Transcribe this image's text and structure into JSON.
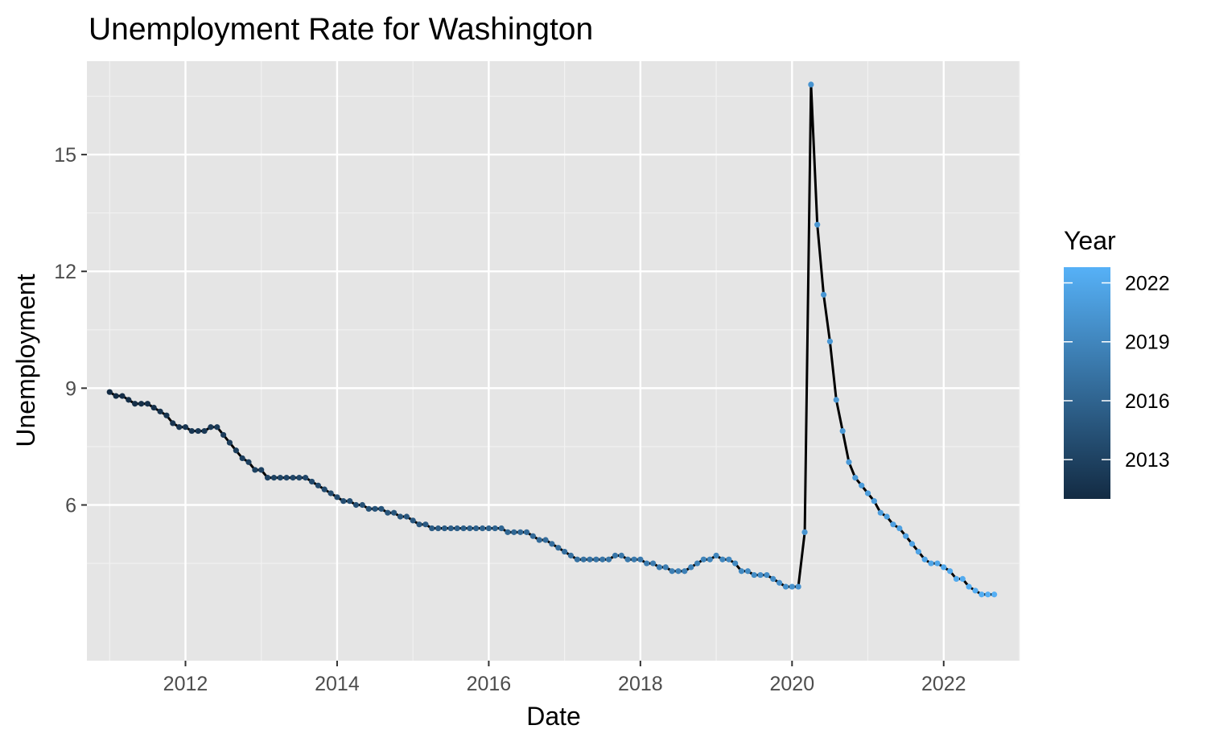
{
  "chart_data": {
    "type": "line",
    "title": "Unemployment Rate for Washington",
    "xlabel": "Date",
    "ylabel": "Unemployment",
    "x_ticks": [
      "2012",
      "2014",
      "2016",
      "2018",
      "2020",
      "2022"
    ],
    "y_ticks": [
      "6",
      "9",
      "12",
      "15"
    ],
    "xlim": [
      2010.7,
      2023.0
    ],
    "ylim": [
      2.0,
      17.4
    ],
    "grid": true,
    "legend": {
      "title": "Year",
      "labels": [
        "2022",
        "2019",
        "2016",
        "2013"
      ],
      "color_low": "#132B43",
      "color_high": "#56B1F7",
      "range": [
        2011,
        2022.8
      ],
      "placement": "right"
    },
    "line_color": "#000000",
    "panel_background": "#E5E5E5",
    "x": [
      2011.0,
      2011.083,
      2011.167,
      2011.25,
      2011.333,
      2011.417,
      2011.5,
      2011.583,
      2011.667,
      2011.75,
      2011.833,
      2011.917,
      2012.0,
      2012.083,
      2012.167,
      2012.25,
      2012.333,
      2012.417,
      2012.5,
      2012.583,
      2012.667,
      2012.75,
      2012.833,
      2012.917,
      2013.0,
      2013.083,
      2013.167,
      2013.25,
      2013.333,
      2013.417,
      2013.5,
      2013.583,
      2013.667,
      2013.75,
      2013.833,
      2013.917,
      2014.0,
      2014.083,
      2014.167,
      2014.25,
      2014.333,
      2014.417,
      2014.5,
      2014.583,
      2014.667,
      2014.75,
      2014.833,
      2014.917,
      2015.0,
      2015.083,
      2015.167,
      2015.25,
      2015.333,
      2015.417,
      2015.5,
      2015.583,
      2015.667,
      2015.75,
      2015.833,
      2015.917,
      2016.0,
      2016.083,
      2016.167,
      2016.25,
      2016.333,
      2016.417,
      2016.5,
      2016.583,
      2016.667,
      2016.75,
      2016.833,
      2016.917,
      2017.0,
      2017.083,
      2017.167,
      2017.25,
      2017.333,
      2017.417,
      2017.5,
      2017.583,
      2017.667,
      2017.75,
      2017.833,
      2017.917,
      2018.0,
      2018.083,
      2018.167,
      2018.25,
      2018.333,
      2018.417,
      2018.5,
      2018.583,
      2018.667,
      2018.75,
      2018.833,
      2018.917,
      2019.0,
      2019.083,
      2019.167,
      2019.25,
      2019.333,
      2019.417,
      2019.5,
      2019.583,
      2019.667,
      2019.75,
      2019.833,
      2019.917,
      2020.0,
      2020.083,
      2020.167,
      2020.25,
      2020.333,
      2020.417,
      2020.5,
      2020.583,
      2020.667,
      2020.75,
      2020.833,
      2020.917,
      2021.0,
      2021.083,
      2021.167,
      2021.25,
      2021.333,
      2021.417,
      2021.5,
      2021.583,
      2021.667,
      2021.75,
      2021.833,
      2021.917,
      2022.0,
      2022.083,
      2022.167,
      2022.25,
      2022.333,
      2022.417,
      2022.5,
      2022.583,
      2022.667
    ],
    "y": [
      8.9,
      8.8,
      8.8,
      8.7,
      8.6,
      8.6,
      8.6,
      8.5,
      8.4,
      8.3,
      8.1,
      8.0,
      8.0,
      7.9,
      7.9,
      7.9,
      8.0,
      8.0,
      7.8,
      7.6,
      7.4,
      7.2,
      7.1,
      6.9,
      6.9,
      6.7,
      6.7,
      6.7,
      6.7,
      6.7,
      6.7,
      6.7,
      6.6,
      6.5,
      6.4,
      6.3,
      6.2,
      6.1,
      6.1,
      6.0,
      6.0,
      5.9,
      5.9,
      5.9,
      5.8,
      5.8,
      5.7,
      5.7,
      5.6,
      5.5,
      5.5,
      5.4,
      5.4,
      5.4,
      5.4,
      5.4,
      5.4,
      5.4,
      5.4,
      5.4,
      5.4,
      5.4,
      5.4,
      5.3,
      5.3,
      5.3,
      5.3,
      5.2,
      5.1,
      5.1,
      5.0,
      4.9,
      4.8,
      4.7,
      4.6,
      4.6,
      4.6,
      4.6,
      4.6,
      4.6,
      4.7,
      4.7,
      4.6,
      4.6,
      4.6,
      4.5,
      4.5,
      4.4,
      4.4,
      4.3,
      4.3,
      4.3,
      4.4,
      4.5,
      4.6,
      4.6,
      4.7,
      4.6,
      4.6,
      4.5,
      4.3,
      4.3,
      4.2,
      4.2,
      4.2,
      4.1,
      4.0,
      3.9,
      3.9,
      3.9,
      5.3,
      16.8,
      13.2,
      11.4,
      10.2,
      8.7,
      7.9,
      7.1,
      6.7,
      6.5,
      6.3,
      6.1,
      5.8,
      5.7,
      5.5,
      5.4,
      5.2,
      5.0,
      4.8,
      4.6,
      4.5,
      4.5,
      4.4,
      4.3,
      4.1,
      4.1,
      3.9,
      3.8,
      3.7,
      3.7,
      3.7
    ]
  }
}
